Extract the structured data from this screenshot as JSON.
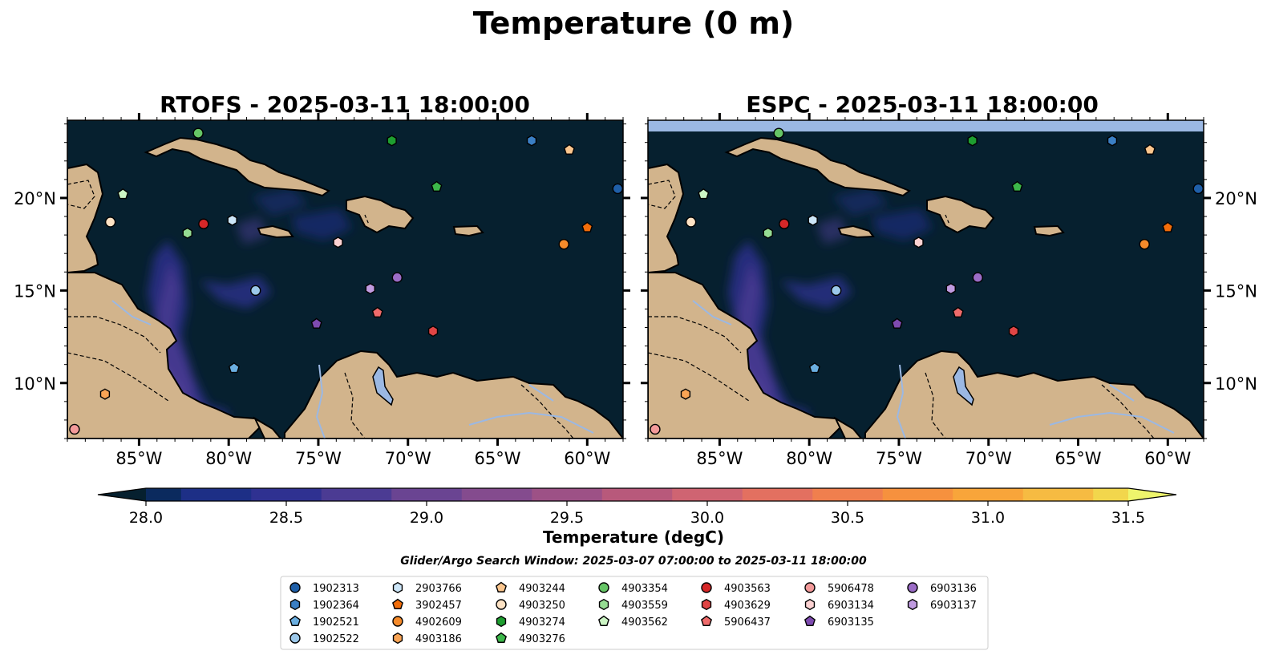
{
  "figure": {
    "title": "Temperature (0 m)",
    "search_window": "Glider/Argo Search Window: 2025-03-07 07:00:00 to 2025-03-11 18:00:00"
  },
  "colors": {
    "ocean_base": "#06202f",
    "land": "#d2b48c",
    "lake": "#9bb8e3",
    "river": "#9bb8e3",
    "nodata_band": "#9bb8e3"
  },
  "chart_data": [
    {
      "type": "heatmap",
      "title": "RTOFS - 2025-03-11 18:00:00",
      "x_ticks": [
        "85°W",
        "80°W",
        "75°W",
        "70°W",
        "65°W",
        "60°W"
      ],
      "x_tick_values": [
        -85,
        -80,
        -75,
        -70,
        -65,
        -60
      ],
      "y_ticks": [
        "10°N",
        "15°N",
        "20°N"
      ],
      "y_tick_values": [
        10,
        15,
        20
      ],
      "y_tick_side": "left",
      "xlim": [
        -89,
        -58
      ],
      "ylim": [
        7,
        24.2
      ],
      "nodata_top_band": false
    },
    {
      "type": "heatmap",
      "title": "ESPC - 2025-03-11 18:00:00",
      "x_ticks": [
        "85°W",
        "80°W",
        "75°W",
        "70°W",
        "65°W",
        "60°W"
      ],
      "x_tick_values": [
        -85,
        -80,
        -75,
        -70,
        -65,
        -60
      ],
      "y_ticks": [
        "20°N",
        "15°N",
        "10°N"
      ],
      "y_tick_values": [
        20,
        15,
        10
      ],
      "y_tick_side": "right",
      "xlim": [
        -89,
        -58
      ],
      "ylim": [
        7,
        24.2
      ],
      "nodata_top_band": true
    }
  ],
  "colorbar": {
    "label": "Temperature (degC)",
    "min": 27.75,
    "max": 31.75,
    "ticks": [
      "28.0",
      "28.5",
      "29.0",
      "29.5",
      "30.0",
      "30.5",
      "31.0",
      "31.5"
    ],
    "tick_values": [
      28.0,
      28.5,
      29.0,
      29.5,
      30.0,
      30.5,
      31.0,
      31.5
    ],
    "colors": [
      "#06202f",
      "#0b2a5e",
      "#1d2f86",
      "#2f3191",
      "#4b3b93",
      "#6a4492",
      "#844b8e",
      "#9d5186",
      "#b8597b",
      "#cf6472",
      "#e37060",
      "#f07f4e",
      "#f6913e",
      "#f8a53a",
      "#f6bb42",
      "#f2d64c",
      "#eef56c"
    ],
    "extend": "both"
  },
  "platforms": [
    {
      "id": "1902313",
      "marker": "circle",
      "color": "#1f5fa8",
      "lon": -58.3,
      "lat": 20.5
    },
    {
      "id": "1902364",
      "marker": "hexagon",
      "color": "#3b7fc4",
      "lon": -63.1,
      "lat": 23.1
    },
    {
      "id": "1902521",
      "marker": "pentagon",
      "color": "#6aaee0",
      "lon": -79.7,
      "lat": 10.8
    },
    {
      "id": "1902522",
      "marker": "circle",
      "color": "#9cc8ea",
      "lon": -78.5,
      "lat": 15.0
    },
    {
      "id": "2903766",
      "marker": "hexagon",
      "color": "#cde6f8",
      "lon": -79.8,
      "lat": 18.8
    },
    {
      "id": "3902457",
      "marker": "pentagon",
      "color": "#f26d0a",
      "lon": -60.0,
      "lat": 18.4
    },
    {
      "id": "4902609",
      "marker": "circle",
      "color": "#f58a2a",
      "lon": -61.3,
      "lat": 17.5
    },
    {
      "id": "4903186",
      "marker": "hexagon",
      "color": "#f9a455",
      "lon": -86.9,
      "lat": 9.4
    },
    {
      "id": "4903244",
      "marker": "pentagon",
      "color": "#fbc68e",
      "lon": -61.0,
      "lat": 22.6
    },
    {
      "id": "4903250",
      "marker": "circle",
      "color": "#fde2c4",
      "lon": -86.6,
      "lat": 18.7
    },
    {
      "id": "4903274",
      "marker": "hexagon",
      "color": "#1e9e30",
      "lon": -70.9,
      "lat": 23.1
    },
    {
      "id": "4903276",
      "marker": "pentagon",
      "color": "#3cb74a",
      "lon": -68.4,
      "lat": 20.6
    },
    {
      "id": "4903354",
      "marker": "circle",
      "color": "#66c566",
      "lon": -81.7,
      "lat": 23.5
    },
    {
      "id": "4903559",
      "marker": "hexagon",
      "color": "#96dc93",
      "lon": -82.3,
      "lat": 18.1
    },
    {
      "id": "4903562",
      "marker": "pentagon",
      "color": "#ccf5c4",
      "lon": -85.9,
      "lat": 20.2
    },
    {
      "id": "4903563",
      "marker": "circle",
      "color": "#d62728",
      "lon": -81.4,
      "lat": 18.6
    },
    {
      "id": "4903629",
      "marker": "hexagon",
      "color": "#e04545",
      "lon": -68.6,
      "lat": 12.8
    },
    {
      "id": "5906437",
      "marker": "pentagon",
      "color": "#ef6b6b",
      "lon": -71.7,
      "lat": 13.8
    },
    {
      "id": "5906478",
      "marker": "circle",
      "color": "#f39a9a",
      "lon": -88.6,
      "lat": 7.5
    },
    {
      "id": "6903134",
      "marker": "hexagon",
      "color": "#fcd2d2",
      "lon": -73.9,
      "lat": 17.6
    },
    {
      "id": "6903135",
      "marker": "pentagon",
      "color": "#7e4bb0",
      "lon": -75.1,
      "lat": 13.2
    },
    {
      "id": "6903136",
      "marker": "circle",
      "color": "#9b6cc6",
      "lon": -70.6,
      "lat": 15.7
    },
    {
      "id": "6903137",
      "marker": "hexagon",
      "color": "#c09be0",
      "lon": -72.1,
      "lat": 15.1
    }
  ]
}
